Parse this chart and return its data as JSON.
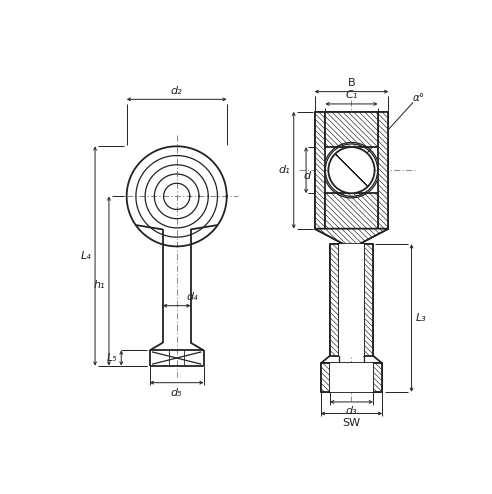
{
  "bg_color": "#ffffff",
  "line_color": "#222222",
  "labels": {
    "d2": "d₂",
    "d4": "d₄",
    "d5": "d₅",
    "L4": "L₄",
    "h1": "h₁",
    "L5": "L₅",
    "B": "B",
    "C1": "C₁",
    "d1": "d₁",
    "d": "d",
    "d3": "d₃",
    "SW": "SW",
    "L3": "L₃",
    "alpha": "α°"
  }
}
